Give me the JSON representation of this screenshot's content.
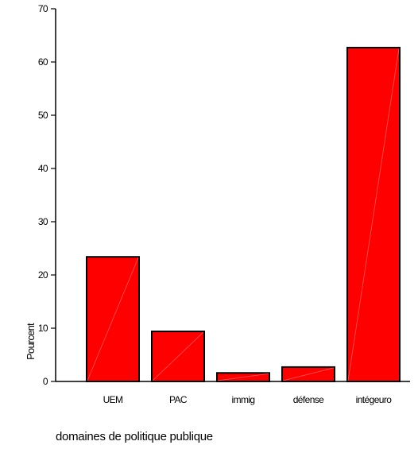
{
  "chart_data": {
    "type": "bar",
    "categories": [
      "UEM",
      "PAC",
      "immig",
      "défense",
      "intégeuro"
    ],
    "values": [
      23.4,
      9.4,
      1.6,
      2.7,
      62.7
    ],
    "xlabel": "domaines de politique publique",
    "ylabel": "Pourcent",
    "ylim": [
      0,
      70
    ],
    "yticks": [
      0,
      10,
      20,
      30,
      40,
      50,
      60,
      70
    ],
    "grid": false,
    "bar_color": "#ff0000",
    "bar_edge_color": "#000000"
  }
}
